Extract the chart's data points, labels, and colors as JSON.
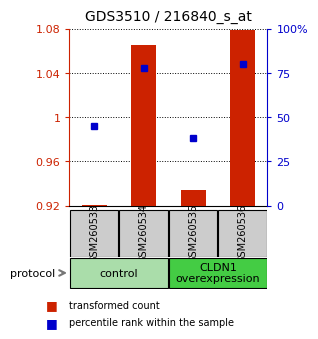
{
  "title": "GDS3510 / 216840_s_at",
  "samples": [
    "GSM260533",
    "GSM260534",
    "GSM260535",
    "GSM260536"
  ],
  "red_values": [
    0.921,
    1.065,
    0.934,
    1.079
  ],
  "blue_pct": [
    45,
    78,
    38,
    80
  ],
  "ylim_left": [
    0.92,
    1.08
  ],
  "ylim_right": [
    0,
    100
  ],
  "yticks_left": [
    0.92,
    0.96,
    1.0,
    1.04,
    1.08
  ],
  "yticks_right": [
    0,
    25,
    50,
    75,
    100
  ],
  "ytick_labels_left": [
    "0.92",
    "0.96",
    "1",
    "1.04",
    "1.08"
  ],
  "ytick_labels_right": [
    "0",
    "25",
    "50",
    "75",
    "100%"
  ],
  "base": 0.92,
  "bar_color": "#cc2200",
  "blue_color": "#0000cc",
  "group1_label": "control",
  "group1_color": "#aaddaa",
  "group2_label": "CLDN1\noverexpression",
  "group2_color": "#44cc44",
  "legend_red": "transformed count",
  "legend_blue": "percentile rank within the sample",
  "protocol_label": "protocol",
  "sample_bg": "#cccccc"
}
